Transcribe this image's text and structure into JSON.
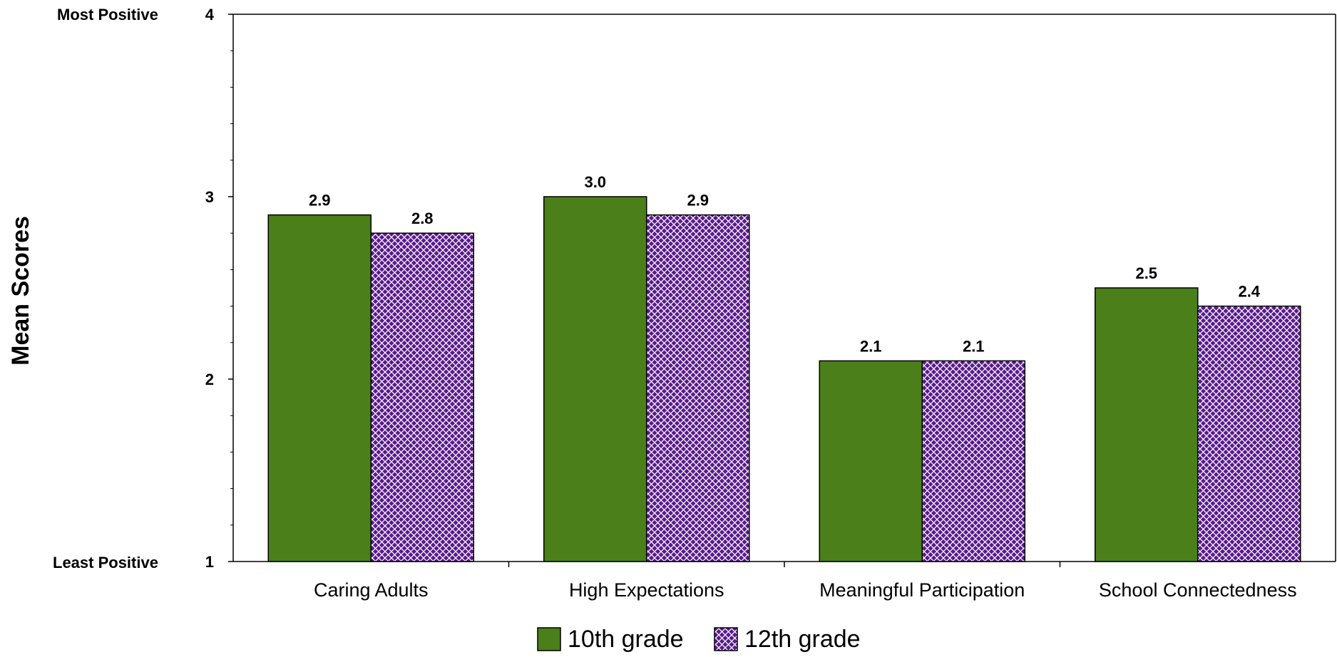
{
  "chart_data": {
    "type": "bar",
    "title": "",
    "xlabel": "",
    "ylabel": "Mean Scores",
    "categories": [
      "Caring Adults",
      "High Expectations",
      "Meaningful Participation",
      "School Connectedness"
    ],
    "series": [
      {
        "name": "10th grade",
        "values": [
          2.9,
          3.0,
          2.1,
          2.5
        ],
        "labels": [
          "2.9",
          "3.0",
          "2.1",
          "2.5"
        ],
        "color": "#4a7f19",
        "pattern": "solid"
      },
      {
        "name": "12th grade",
        "values": [
          2.8,
          2.9,
          2.1,
          2.4
        ],
        "labels": [
          "2.8",
          "2.9",
          "2.1",
          "2.4"
        ],
        "color": "#5a1a8c",
        "pattern": "crosshatch"
      }
    ],
    "ylim": [
      1,
      4
    ],
    "yticks": [
      1,
      2,
      3,
      4
    ],
    "ytick_labels": [
      "1",
      "2",
      "3",
      "4"
    ],
    "y_anchor_labels": {
      "top": "Most Positive",
      "bottom": "Least Positive"
    },
    "grid": false,
    "legend_position": "bottom-center"
  }
}
